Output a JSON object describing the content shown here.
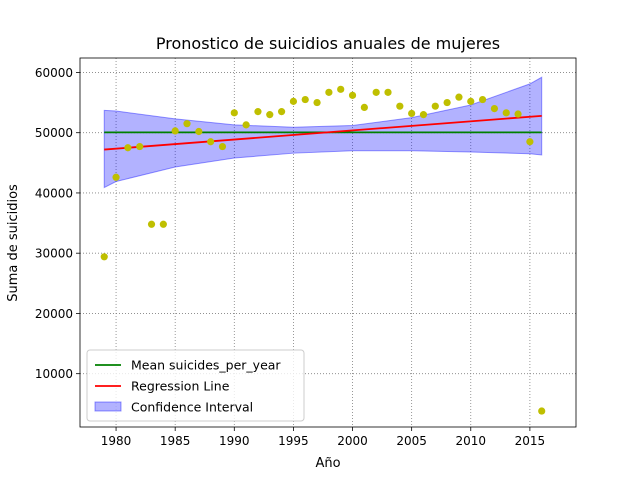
{
  "chart_data": {
    "type": "scatter",
    "title": "Pronostico de suicidios anuales de mujeres",
    "xlabel": "Año",
    "ylabel": "Suma de suicidios",
    "xlim": [
      1976.95,
      2018.9
    ],
    "ylim": [
      1150,
      62400
    ],
    "x_ticks": [
      1980,
      1985,
      1990,
      1995,
      2000,
      2005,
      2010,
      2015
    ],
    "y_ticks": [
      10000,
      20000,
      30000,
      40000,
      50000,
      60000
    ],
    "grid": true,
    "legend_position": "lower-left",
    "points": {
      "color": "#bfbf00",
      "x": [
        1979,
        1980,
        1981,
        1982,
        1983,
        1984,
        1985,
        1986,
        1987,
        1988,
        1989,
        1990,
        1991,
        1992,
        1993,
        1994,
        1995,
        1996,
        1997,
        1998,
        1999,
        2000,
        2001,
        2002,
        2003,
        2004,
        2005,
        2006,
        2007,
        2008,
        2009,
        2010,
        2011,
        2012,
        2013,
        2014,
        2015,
        2016
      ],
      "y": [
        29400,
        42600,
        47500,
        47700,
        34800,
        34800,
        50300,
        51500,
        50200,
        48500,
        47700,
        53300,
        51300,
        53500,
        53000,
        53500,
        55200,
        55500,
        55000,
        56700,
        57200,
        56200,
        54200,
        56700,
        56700,
        54400,
        53200,
        53000,
        54400,
        55000,
        55900,
        55200,
        55500,
        54000,
        53300,
        53100,
        48500,
        3800
      ]
    },
    "series": [
      {
        "name": "Mean suicides_per_year",
        "color": "#008000",
        "x": [
          1979,
          2016
        ],
        "y": [
          50050,
          50050
        ]
      },
      {
        "name": "Regression Line",
        "color": "#ff0000",
        "x": [
          1979,
          2016
        ],
        "y": [
          47200,
          52800
        ]
      }
    ],
    "confidence_interval": {
      "name": "Confidence Interval",
      "color": "#0000ff",
      "x": [
        1979,
        1980,
        1985,
        1990,
        1995,
        2000,
        2005,
        2010,
        2015,
        2016
      ],
      "upper": [
        53700,
        53600,
        52300,
        51300,
        50900,
        51200,
        52500,
        54600,
        58100,
        59200
      ],
      "lower": [
        40900,
        41900,
        44300,
        45800,
        46600,
        47000,
        47000,
        46800,
        46500,
        46300
      ]
    }
  }
}
